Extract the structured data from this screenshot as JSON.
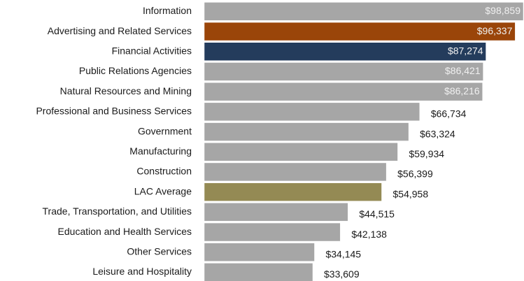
{
  "chart_data": {
    "type": "bar",
    "orientation": "horizontal",
    "categories": [
      "Information",
      "Advertising and Related Services",
      "Financial Activities",
      "Public Relations Agencies",
      "Natural Resources and Mining",
      "Professional and Business Services",
      "Government",
      "Manufacturing",
      "Construction",
      "LAC Average",
      "Trade, Transportation, and Utilities",
      "Education and Health Services",
      "Other Services",
      "Leisure and Hospitality"
    ],
    "values": [
      98859,
      96337,
      87274,
      86421,
      86216,
      66734,
      63324,
      59934,
      56399,
      54958,
      44515,
      42138,
      34145,
      33609
    ],
    "value_labels": [
      "$98,859",
      "$96,337",
      "$87,274",
      "$86,421",
      "$86,216",
      "$66,734",
      "$63,324",
      "$59,934",
      "$56,399",
      "$54,958",
      "$44,515",
      "$42,138",
      "$34,145",
      "$33,609"
    ],
    "colors": [
      "#a6a6a6",
      "#9a4509",
      "#243c5c",
      "#a6a6a6",
      "#a6a6a6",
      "#a6a6a6",
      "#a6a6a6",
      "#a6a6a6",
      "#a6a6a6",
      "#948a54",
      "#a6a6a6",
      "#a6a6a6",
      "#a6a6a6",
      "#a6a6a6"
    ]
  }
}
